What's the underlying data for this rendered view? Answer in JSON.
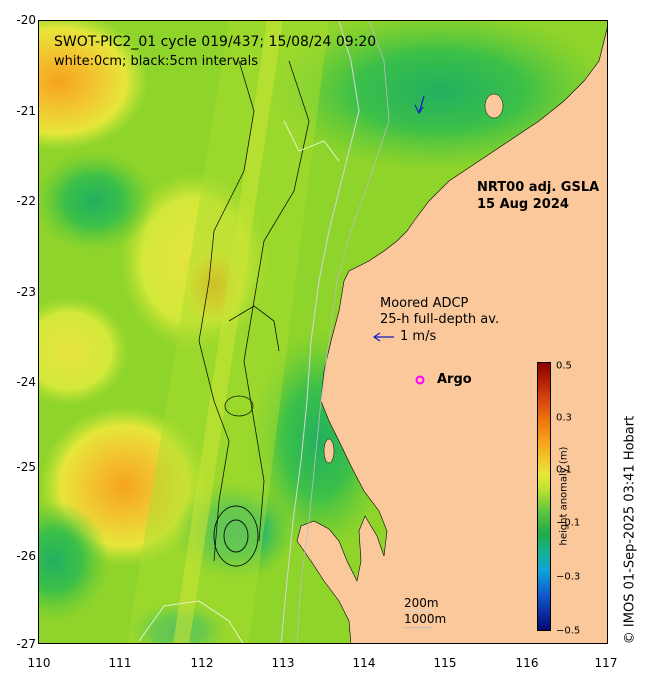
{
  "header": {
    "title_line1": "SWOT-PIC2_01 cycle 019/437; 15/08/24 09:20",
    "title_line2": "white:0cm; black:5cm intervals"
  },
  "product": {
    "line1": "NRT00 adj. GSLA",
    "line2": "15 Aug 2024"
  },
  "adcp": {
    "line1": "Moored ADCP",
    "line2": "25-h full-depth av.",
    "scale_label": "1 m/s"
  },
  "argo": {
    "label": "Argo",
    "color": "#ff00ff"
  },
  "depth_legend": {
    "contour1": "200m",
    "contour2": "1000m"
  },
  "axes": {
    "y_ticks": [
      "-20",
      "-21",
      "-22",
      "-23",
      "-24",
      "-25",
      "-26",
      "-27"
    ],
    "x_ticks": [
      "110",
      "111",
      "112",
      "113",
      "114",
      "115",
      "116",
      "117"
    ]
  },
  "colorbar": {
    "label": "height anomaly (m)",
    "ticks": [
      "0.5",
      "0.3",
      "0.1",
      "−0.1",
      "−0.3",
      "−0.5"
    ],
    "range": [
      -0.5,
      0.5
    ]
  },
  "credit": "© IMOS 01-Sep-2025 03:41 Hobart",
  "colors": {
    "land": "#fac89a",
    "ocean_base": "#8ed42a",
    "adcp_arrow": "#1020c0"
  }
}
